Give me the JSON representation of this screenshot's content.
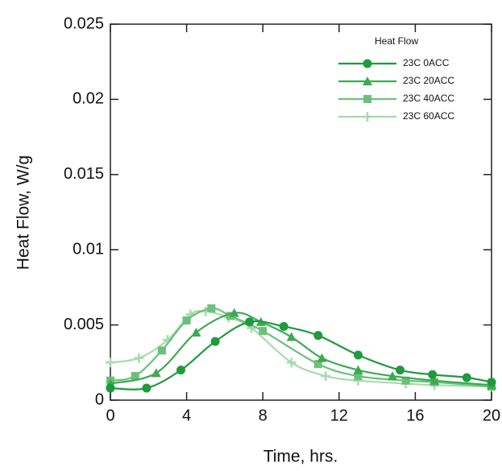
{
  "chart_data": {
    "type": "line",
    "xlabel": "Time, hrs.",
    "ylabel": "Heat Flow, W/g",
    "legend_title": "Heat Flow",
    "legend_position": "upper right",
    "xlim": [
      0,
      20
    ],
    "xticks": [
      0,
      4,
      8,
      12,
      16,
      20
    ],
    "ylim": [
      0,
      0.025
    ],
    "yticks": [
      0,
      0.005,
      0.01,
      0.015,
      0.02,
      0.025
    ],
    "series": [
      {
        "name": "23C 0ACC",
        "color": "#1f9a3c",
        "marker": "circle",
        "x": [
          0,
          1.9,
          3.7,
          5.5,
          7.3,
          9.1,
          10.9,
          13,
          15.2,
          16.9,
          18.7,
          20
        ],
        "values": [
          0.0008,
          0.0008,
          0.002,
          0.0039,
          0.0052,
          0.0049,
          0.0043,
          0.003,
          0.002,
          0.0017,
          0.0015,
          0.0012
        ]
      },
      {
        "name": "23C 20ACC",
        "color": "#3daa52",
        "marker": "triangle",
        "x": [
          0,
          2.4,
          4.5,
          6.5,
          7.9,
          9.5,
          11.1,
          13,
          14.8,
          17,
          20
        ],
        "values": [
          0.0011,
          0.0018,
          0.0045,
          0.0058,
          0.0052,
          0.0042,
          0.0028,
          0.002,
          0.0016,
          0.0013,
          0.001
        ]
      },
      {
        "name": "23C 40ACC",
        "color": "#6cc07b",
        "marker": "square",
        "x": [
          0,
          1.3,
          2.7,
          4,
          5.3,
          6.3,
          8,
          10.9,
          13,
          15.5,
          17,
          20
        ],
        "values": [
          0.0013,
          0.0016,
          0.0033,
          0.0053,
          0.0061,
          0.0056,
          0.0046,
          0.0024,
          0.0016,
          0.0013,
          0.0012,
          0.0009
        ]
      },
      {
        "name": "23C 60ACC",
        "color": "#a6daaf",
        "marker": "plus",
        "x": [
          0,
          1.5,
          3,
          4.2,
          5,
          6.2,
          7.4,
          9.5,
          11.3,
          13,
          15.5,
          17,
          20
        ],
        "values": [
          0.0025,
          0.0028,
          0.004,
          0.0057,
          0.0059,
          0.0055,
          0.0048,
          0.0025,
          0.0016,
          0.0013,
          0.0011,
          0.001,
          0.0009
        ]
      }
    ]
  }
}
